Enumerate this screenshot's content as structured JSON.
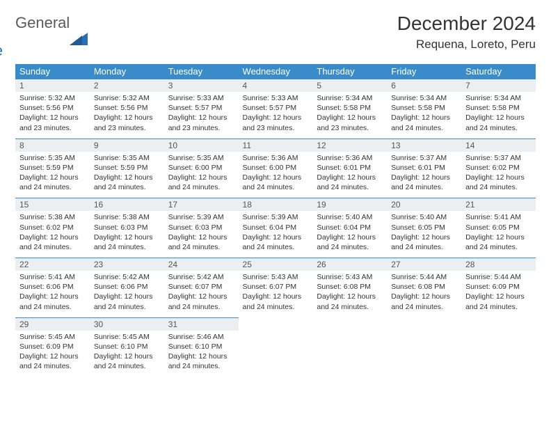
{
  "logo": {
    "general": "General",
    "blue": "Blue"
  },
  "title": "December 2024",
  "location": "Requena, Loreto, Peru",
  "colors": {
    "header_bg": "#3a8bc9",
    "daynum_bg": "#eceff1",
    "border": "#3a8bc9",
    "text": "#333333",
    "logo_gray": "#5a5a5a",
    "logo_blue": "#2a6fb5"
  },
  "day_headers": [
    "Sunday",
    "Monday",
    "Tuesday",
    "Wednesday",
    "Thursday",
    "Friday",
    "Saturday"
  ],
  "weeks": [
    [
      {
        "n": "1",
        "sr": "Sunrise: 5:32 AM",
        "ss": "Sunset: 5:56 PM",
        "d1": "Daylight: 12 hours",
        "d2": "and 23 minutes."
      },
      {
        "n": "2",
        "sr": "Sunrise: 5:32 AM",
        "ss": "Sunset: 5:56 PM",
        "d1": "Daylight: 12 hours",
        "d2": "and 23 minutes."
      },
      {
        "n": "3",
        "sr": "Sunrise: 5:33 AM",
        "ss": "Sunset: 5:57 PM",
        "d1": "Daylight: 12 hours",
        "d2": "and 23 minutes."
      },
      {
        "n": "4",
        "sr": "Sunrise: 5:33 AM",
        "ss": "Sunset: 5:57 PM",
        "d1": "Daylight: 12 hours",
        "d2": "and 23 minutes."
      },
      {
        "n": "5",
        "sr": "Sunrise: 5:34 AM",
        "ss": "Sunset: 5:58 PM",
        "d1": "Daylight: 12 hours",
        "d2": "and 23 minutes."
      },
      {
        "n": "6",
        "sr": "Sunrise: 5:34 AM",
        "ss": "Sunset: 5:58 PM",
        "d1": "Daylight: 12 hours",
        "d2": "and 24 minutes."
      },
      {
        "n": "7",
        "sr": "Sunrise: 5:34 AM",
        "ss": "Sunset: 5:58 PM",
        "d1": "Daylight: 12 hours",
        "d2": "and 24 minutes."
      }
    ],
    [
      {
        "n": "8",
        "sr": "Sunrise: 5:35 AM",
        "ss": "Sunset: 5:59 PM",
        "d1": "Daylight: 12 hours",
        "d2": "and 24 minutes."
      },
      {
        "n": "9",
        "sr": "Sunrise: 5:35 AM",
        "ss": "Sunset: 5:59 PM",
        "d1": "Daylight: 12 hours",
        "d2": "and 24 minutes."
      },
      {
        "n": "10",
        "sr": "Sunrise: 5:35 AM",
        "ss": "Sunset: 6:00 PM",
        "d1": "Daylight: 12 hours",
        "d2": "and 24 minutes."
      },
      {
        "n": "11",
        "sr": "Sunrise: 5:36 AM",
        "ss": "Sunset: 6:00 PM",
        "d1": "Daylight: 12 hours",
        "d2": "and 24 minutes."
      },
      {
        "n": "12",
        "sr": "Sunrise: 5:36 AM",
        "ss": "Sunset: 6:01 PM",
        "d1": "Daylight: 12 hours",
        "d2": "and 24 minutes."
      },
      {
        "n": "13",
        "sr": "Sunrise: 5:37 AM",
        "ss": "Sunset: 6:01 PM",
        "d1": "Daylight: 12 hours",
        "d2": "and 24 minutes."
      },
      {
        "n": "14",
        "sr": "Sunrise: 5:37 AM",
        "ss": "Sunset: 6:02 PM",
        "d1": "Daylight: 12 hours",
        "d2": "and 24 minutes."
      }
    ],
    [
      {
        "n": "15",
        "sr": "Sunrise: 5:38 AM",
        "ss": "Sunset: 6:02 PM",
        "d1": "Daylight: 12 hours",
        "d2": "and 24 minutes."
      },
      {
        "n": "16",
        "sr": "Sunrise: 5:38 AM",
        "ss": "Sunset: 6:03 PM",
        "d1": "Daylight: 12 hours",
        "d2": "and 24 minutes."
      },
      {
        "n": "17",
        "sr": "Sunrise: 5:39 AM",
        "ss": "Sunset: 6:03 PM",
        "d1": "Daylight: 12 hours",
        "d2": "and 24 minutes."
      },
      {
        "n": "18",
        "sr": "Sunrise: 5:39 AM",
        "ss": "Sunset: 6:04 PM",
        "d1": "Daylight: 12 hours",
        "d2": "and 24 minutes."
      },
      {
        "n": "19",
        "sr": "Sunrise: 5:40 AM",
        "ss": "Sunset: 6:04 PM",
        "d1": "Daylight: 12 hours",
        "d2": "and 24 minutes."
      },
      {
        "n": "20",
        "sr": "Sunrise: 5:40 AM",
        "ss": "Sunset: 6:05 PM",
        "d1": "Daylight: 12 hours",
        "d2": "and 24 minutes."
      },
      {
        "n": "21",
        "sr": "Sunrise: 5:41 AM",
        "ss": "Sunset: 6:05 PM",
        "d1": "Daylight: 12 hours",
        "d2": "and 24 minutes."
      }
    ],
    [
      {
        "n": "22",
        "sr": "Sunrise: 5:41 AM",
        "ss": "Sunset: 6:06 PM",
        "d1": "Daylight: 12 hours",
        "d2": "and 24 minutes."
      },
      {
        "n": "23",
        "sr": "Sunrise: 5:42 AM",
        "ss": "Sunset: 6:06 PM",
        "d1": "Daylight: 12 hours",
        "d2": "and 24 minutes."
      },
      {
        "n": "24",
        "sr": "Sunrise: 5:42 AM",
        "ss": "Sunset: 6:07 PM",
        "d1": "Daylight: 12 hours",
        "d2": "and 24 minutes."
      },
      {
        "n": "25",
        "sr": "Sunrise: 5:43 AM",
        "ss": "Sunset: 6:07 PM",
        "d1": "Daylight: 12 hours",
        "d2": "and 24 minutes."
      },
      {
        "n": "26",
        "sr": "Sunrise: 5:43 AM",
        "ss": "Sunset: 6:08 PM",
        "d1": "Daylight: 12 hours",
        "d2": "and 24 minutes."
      },
      {
        "n": "27",
        "sr": "Sunrise: 5:44 AM",
        "ss": "Sunset: 6:08 PM",
        "d1": "Daylight: 12 hours",
        "d2": "and 24 minutes."
      },
      {
        "n": "28",
        "sr": "Sunrise: 5:44 AM",
        "ss": "Sunset: 6:09 PM",
        "d1": "Daylight: 12 hours",
        "d2": "and 24 minutes."
      }
    ],
    [
      {
        "n": "29",
        "sr": "Sunrise: 5:45 AM",
        "ss": "Sunset: 6:09 PM",
        "d1": "Daylight: 12 hours",
        "d2": "and 24 minutes."
      },
      {
        "n": "30",
        "sr": "Sunrise: 5:45 AM",
        "ss": "Sunset: 6:10 PM",
        "d1": "Daylight: 12 hours",
        "d2": "and 24 minutes."
      },
      {
        "n": "31",
        "sr": "Sunrise: 5:46 AM",
        "ss": "Sunset: 6:10 PM",
        "d1": "Daylight: 12 hours",
        "d2": "and 24 minutes."
      },
      null,
      null,
      null,
      null
    ]
  ]
}
